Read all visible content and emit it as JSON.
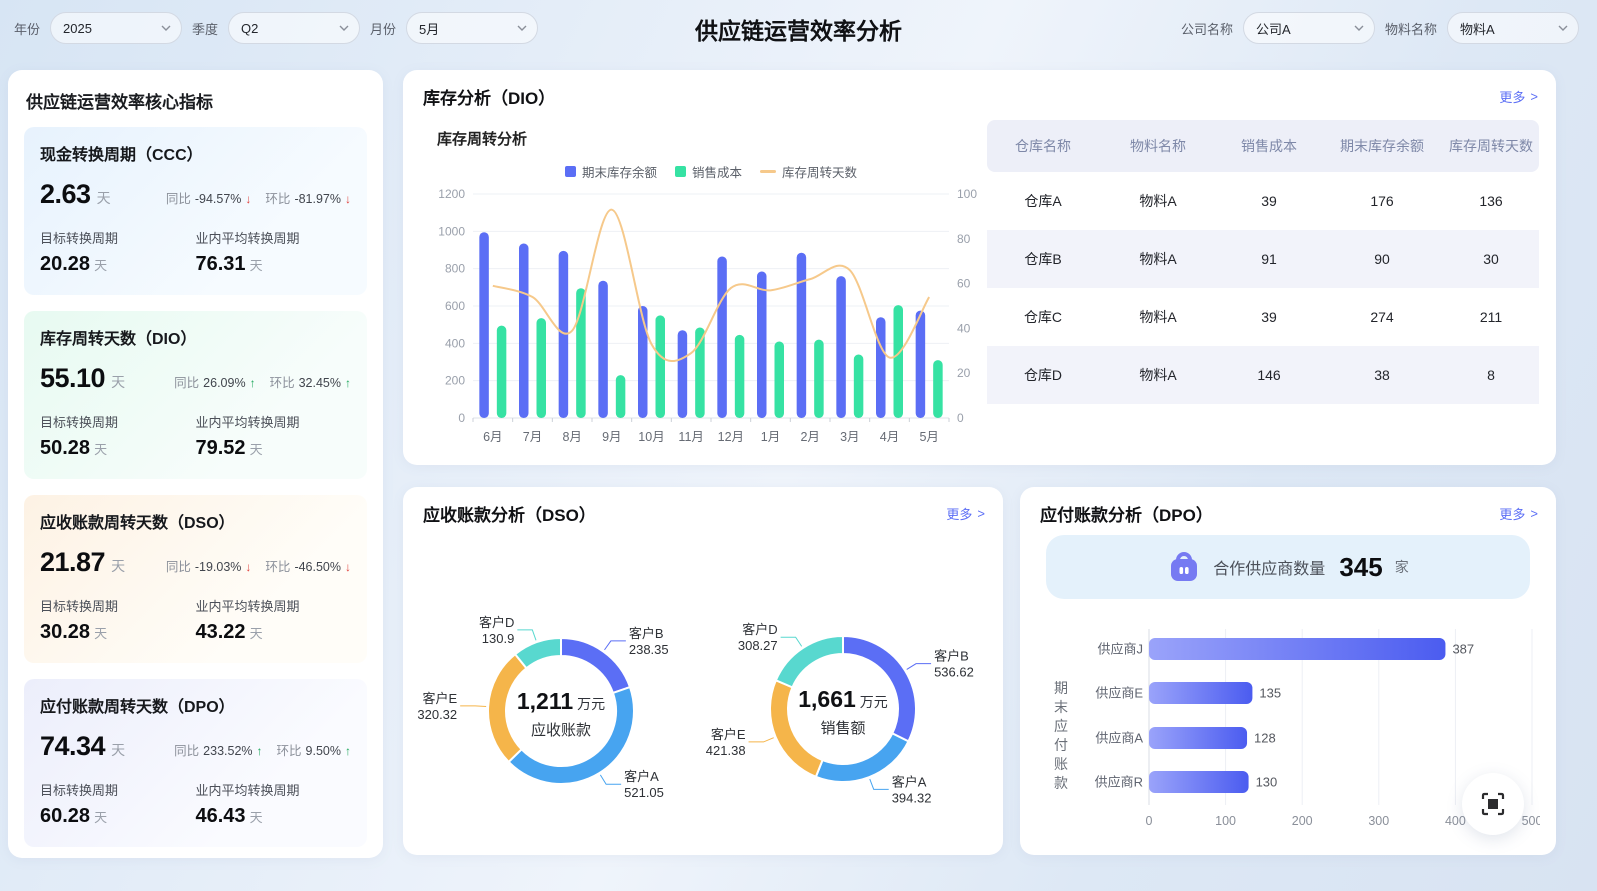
{
  "title": "供应链运营效率分析",
  "ui": {
    "more": "更多",
    "more_arrow": ">"
  },
  "filters": {
    "year": {
      "label": "年份",
      "value": "2025"
    },
    "quarter": {
      "label": "季度",
      "value": "Q2"
    },
    "month": {
      "label": "月份",
      "value": "5月"
    },
    "company": {
      "label": "公司名称",
      "value": "公司A"
    },
    "material": {
      "label": "物料名称",
      "value": "物料A"
    }
  },
  "kpi_panel": {
    "title": "供应链运营效率核心指标",
    "unit": "天",
    "yoy_label": "同比",
    "mom_label": "环比",
    "target_label": "目标转换周期",
    "industry_label": "业内平均转换周期",
    "cards": [
      {
        "name": "现金转换周期（CCC）",
        "value": "2.63",
        "yoy": "-94.57%",
        "yoy_arrow": "↓",
        "mom": "-81.97%",
        "mom_arrow": "↓",
        "target": "20.28",
        "industry": "76.31"
      },
      {
        "name": "库存周转天数（DIO）",
        "value": "55.10",
        "yoy": "26.09%",
        "yoy_arrow": "↑",
        "mom": "32.45%",
        "mom_arrow": "↑",
        "target": "50.28",
        "industry": "79.52"
      },
      {
        "name": "应收账款周转天数（DSO）",
        "value": "21.87",
        "yoy": "-19.03%",
        "yoy_arrow": "↓",
        "mom": "-46.50%",
        "mom_arrow": "↓",
        "target": "30.28",
        "industry": "43.22"
      },
      {
        "name": "应付账款周转天数（DPO）",
        "value": "74.34",
        "yoy": "233.52%",
        "yoy_arrow": "↑",
        "mom": "9.50%",
        "mom_arrow": "↑",
        "target": "60.28",
        "industry": "46.43"
      }
    ]
  },
  "inventory_panel": {
    "title": "库存分析（DIO）",
    "table": {
      "headers": [
        "仓库名称",
        "物料名称",
        "销售成本",
        "期末库存余额",
        "库存周转天数"
      ],
      "rows": [
        [
          "仓库A",
          "物料A",
          "39",
          "176",
          "136"
        ],
        [
          "仓库B",
          "物料A",
          "91",
          "90",
          "30"
        ],
        [
          "仓库C",
          "物料A",
          "39",
          "274",
          "211"
        ],
        [
          "仓库D",
          "物料A",
          "146",
          "38",
          "8"
        ]
      ]
    }
  },
  "dso_panel": {
    "title": "应收账款分析（DSO）"
  },
  "dpo_panel": {
    "title": "应付账款分析（DPO）",
    "supplier_banner": {
      "label": "合作供应商数量",
      "value": "345",
      "unit": "家"
    }
  },
  "colors": {
    "accent": "#5b6ef5",
    "bar_blue": "#5b6ef5",
    "bar_green": "#36e2a3",
    "line_orange": "#f6c98b",
    "donut_sky": "#47a4f0",
    "donut_amber": "#f5b54a",
    "donut_teal": "#58d8cf",
    "trend_down_red": "#e0443f",
    "trend_up_green": "#1fa85d",
    "banner_bg": "#e4f1fb",
    "bag_purple": "#767af2"
  },
  "chart_data": [
    {
      "id": "inventory_turnover_combo",
      "type": "bar",
      "title": "库存周转分析",
      "categories": [
        "6月",
        "7月",
        "8月",
        "9月",
        "10月",
        "11月",
        "12月",
        "1月",
        "2月",
        "3月",
        "4月",
        "5月"
      ],
      "series": [
        {
          "name": "期末库存余额",
          "type": "bar",
          "axis": "left",
          "color": "#5b6ef5",
          "values": [
            995,
            935,
            895,
            735,
            600,
            470,
            865,
            785,
            885,
            760,
            540,
            575
          ]
        },
        {
          "name": "销售成本",
          "type": "bar",
          "axis": "left",
          "color": "#36e2a3",
          "values": [
            495,
            535,
            695,
            230,
            550,
            485,
            445,
            410,
            420,
            340,
            605,
            310
          ]
        },
        {
          "name": "库存周转天数",
          "type": "line",
          "axis": "right",
          "color": "#f6c98b",
          "values": [
            59,
            54,
            39,
            93,
            33,
            29,
            58,
            57,
            62,
            66,
            27,
            54
          ]
        }
      ],
      "y_left": {
        "min": 0,
        "max": 1200,
        "step": 200
      },
      "y_right": {
        "min": 0,
        "max": 100,
        "step": 20
      },
      "grid": true,
      "legend_position": "top"
    },
    {
      "id": "dso_receivables_donut",
      "type": "pie",
      "center_value": "1,211",
      "center_unit": "万元",
      "center_label": "应收账款",
      "slices": [
        {
          "name": "客户B",
          "value": 238.35,
          "color": "#5b6ef5"
        },
        {
          "name": "客户A",
          "value": 521.05,
          "color": "#47a4f0"
        },
        {
          "name": "客户E",
          "value": 320.32,
          "color": "#f5b54a"
        },
        {
          "name": "客户D",
          "value": 130.9,
          "color": "#58d8cf"
        }
      ]
    },
    {
      "id": "dso_sales_donut",
      "type": "pie",
      "center_value": "1,661",
      "center_unit": "万元",
      "center_label": "销售额",
      "slices": [
        {
          "name": "客户B",
          "value": 536.62,
          "color": "#5b6ef5"
        },
        {
          "name": "客户A",
          "value": 394.32,
          "color": "#47a4f0"
        },
        {
          "name": "客户E",
          "value": 421.38,
          "color": "#f5b54a"
        },
        {
          "name": "客户D",
          "value": 308.27,
          "color": "#58d8cf"
        }
      ]
    },
    {
      "id": "dpo_suppliers_hbar",
      "type": "bar",
      "orientation": "horizontal",
      "ylabel": "期末应付账款",
      "categories": [
        "供应商J",
        "供应商E",
        "供应商A",
        "供应商R"
      ],
      "values": [
        387,
        135,
        128,
        130
      ],
      "xlim": [
        0,
        500
      ],
      "x_ticks": [
        0,
        100,
        200,
        300,
        400,
        500
      ],
      "color": "#5b6ef5"
    }
  ]
}
